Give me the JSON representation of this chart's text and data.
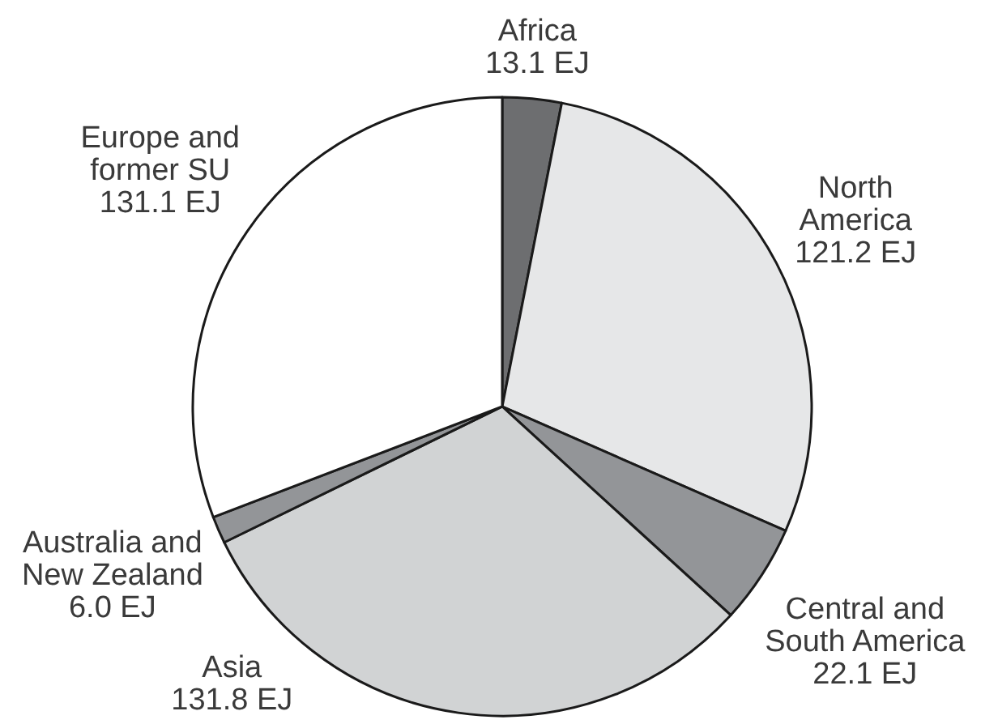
{
  "chart_data": {
    "type": "pie",
    "categories": [
      "Africa",
      "North America",
      "Central and South America",
      "Asia",
      "Australia and New Zealand",
      "Europe and former SU"
    ],
    "values": [
      13.1,
      121.2,
      22.1,
      131.8,
      6.0,
      131.1
    ],
    "value_labels": [
      "13.1 EJ",
      "121.2 EJ",
      "22.1 EJ",
      "131.8 EJ",
      "6.0 EJ",
      "131.1 EJ"
    ],
    "colors": [
      "#6d6e70",
      "#e6e7e8",
      "#939598",
      "#d1d3d4",
      "#939598",
      "#ffffff"
    ]
  }
}
